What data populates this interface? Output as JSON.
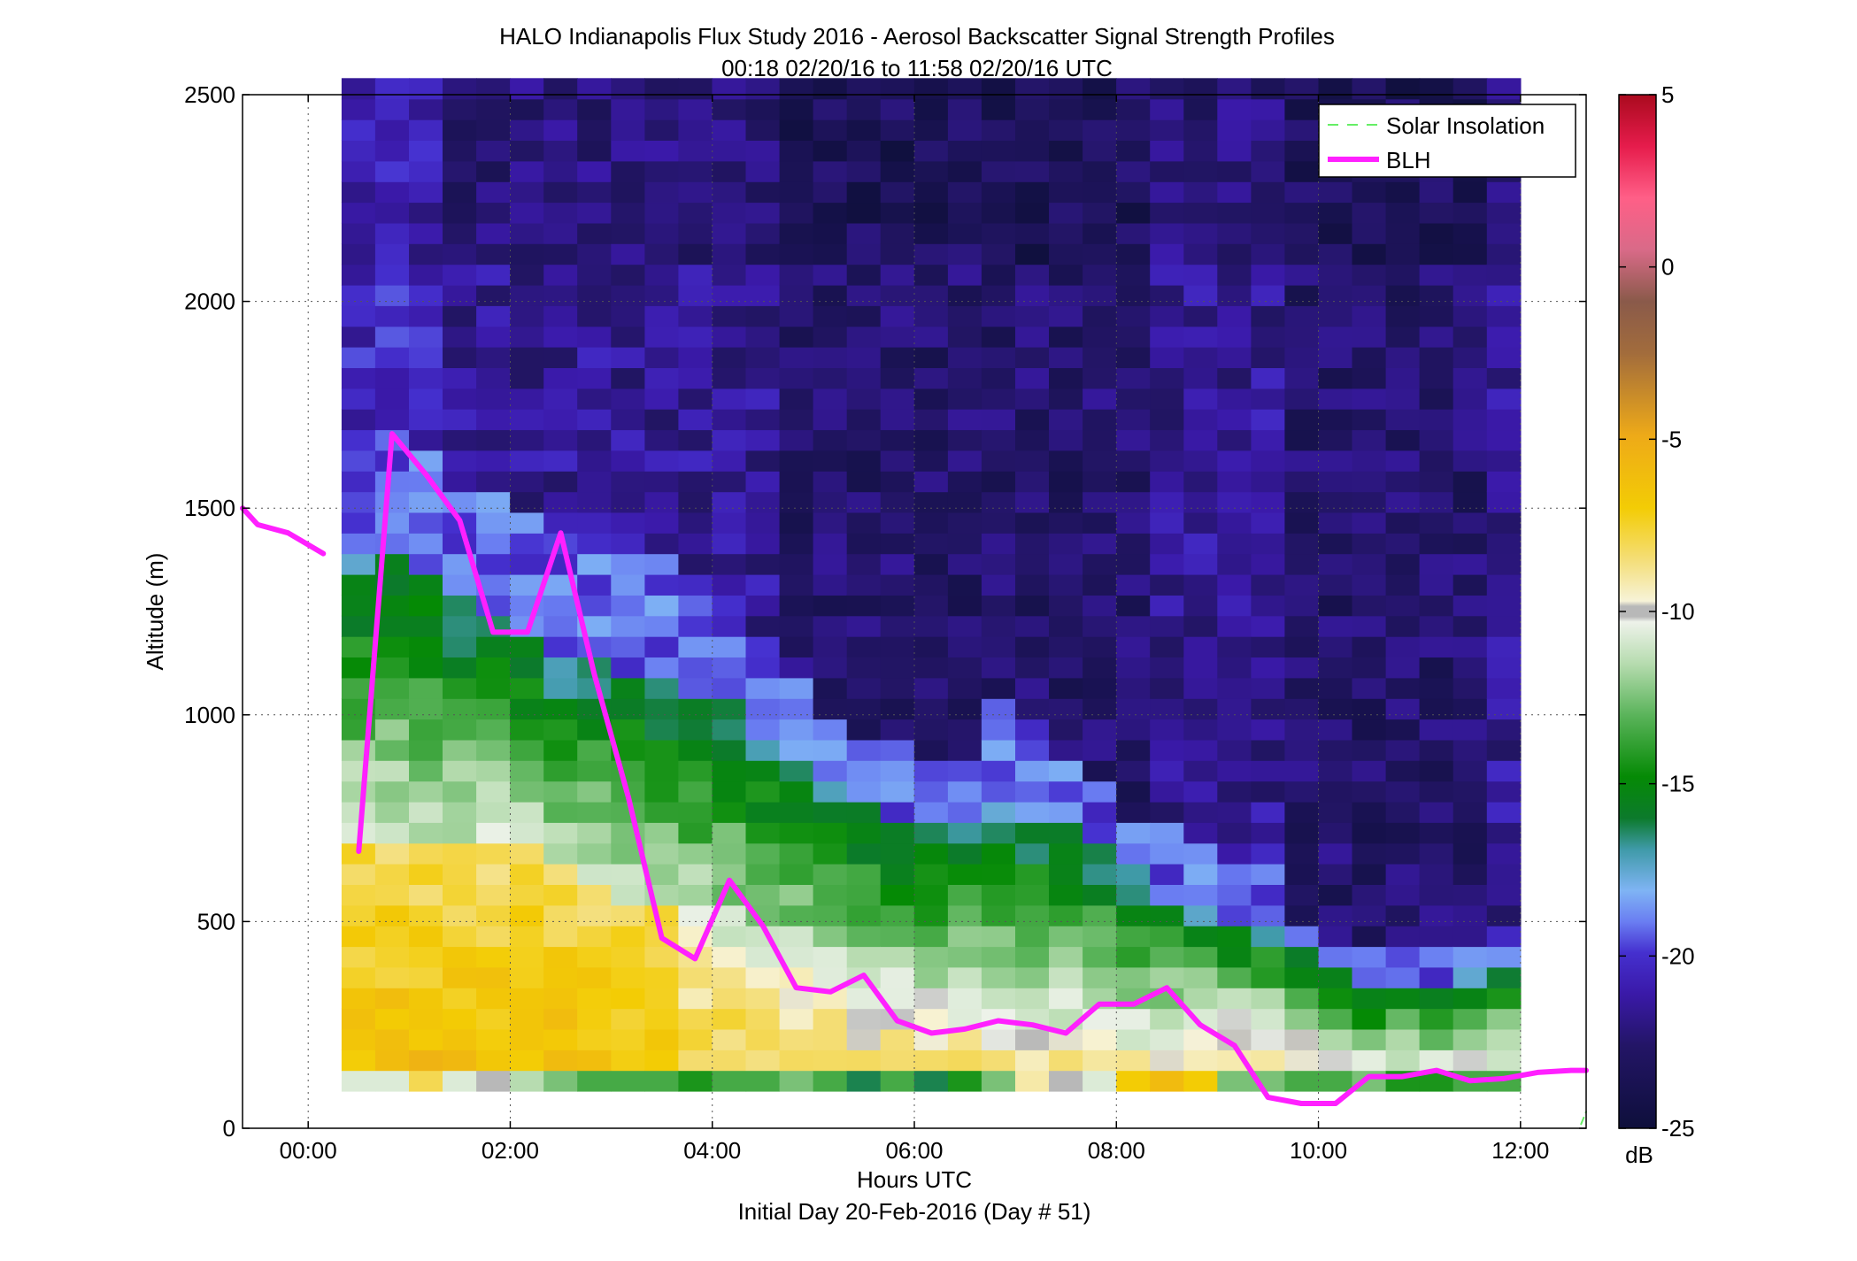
{
  "chart_data": {
    "type": "heatmap",
    "title": "HALO Indianapolis Flux Study 2016 - Aerosol Backscatter Signal Strength Profiles",
    "subtitle": "00:18 02/20/16 to 11:58 02/20/16  UTC",
    "xlabel": "Hours UTC",
    "footer": "Initial Day 20-Feb-2016 (Day # 51)",
    "ylabel": "Altitude (m)",
    "xlim": [
      -0.65,
      12.65
    ],
    "ylim": [
      0,
      2500
    ],
    "x_ticks": [
      0,
      2,
      4,
      6,
      8,
      10,
      12
    ],
    "x_tick_labels": [
      "00:00",
      "02:00",
      "04:00",
      "06:00",
      "08:00",
      "10:00",
      "12:00"
    ],
    "y_ticks": [
      0,
      500,
      1000,
      1500,
      2000,
      2500
    ],
    "y_tick_labels": [
      "0",
      "500",
      "1000",
      "1500",
      "2000",
      "2500"
    ],
    "grid": true,
    "legend": {
      "placement": "top-right",
      "entries": [
        {
          "label": "Solar Insolation",
          "color": "#66ee66",
          "style": "dashed"
        },
        {
          "label": "BLH",
          "color": "#ff20ff",
          "style": "solid"
        }
      ]
    },
    "colorbar": {
      "label": "dB",
      "range": [
        -25,
        5
      ],
      "ticks": [
        5,
        0,
        -5,
        -10,
        -15,
        -20,
        -25
      ],
      "tick_labels": [
        "5",
        "0",
        "-5",
        "-10",
        "-15",
        "-20",
        "-25"
      ]
    },
    "heatmap": {
      "x_start": 0.33,
      "x_end": 12.0,
      "columns": 35,
      "z_bins": [
        {
          "z0": 90,
          "z1": 140,
          "values": [
            -11,
            -11,
            -8,
            -11,
            -10,
            -12,
            -13,
            -14,
            -14,
            -14,
            -15,
            -14,
            -14,
            -13,
            -14,
            -17,
            -14,
            -17,
            -15,
            -13,
            -9,
            -10,
            -11,
            -7,
            -6,
            -7,
            -13,
            -13,
            -14,
            -14,
            -13,
            -15,
            -15,
            -14,
            -14
          ]
        },
        {
          "z0": 140,
          "z1": 460,
          "profile": "surface"
        },
        {
          "z0": 460,
          "z1": 2500,
          "profile": "aloft"
        }
      ],
      "columns_profile": [
        {
          "surface_top": 700,
          "green_top": 1400,
          "light_top": 1680,
          "purple": -21
        },
        {
          "surface_top": 700,
          "green_top": 1380,
          "light_top": 1680,
          "purple": -21
        },
        {
          "surface_top": 690,
          "green_top": 1360,
          "light_top": 1620,
          "purple": -21
        },
        {
          "surface_top": 690,
          "green_top": 1300,
          "light_top": 1560,
          "purple": -22
        },
        {
          "surface_top": 680,
          "green_top": 1240,
          "light_top": 1520,
          "purple": -22
        },
        {
          "surface_top": 670,
          "green_top": 1200,
          "light_top": 1480,
          "purple": -22
        },
        {
          "surface_top": 640,
          "green_top": 1140,
          "light_top": 1460,
          "purple": -22
        },
        {
          "surface_top": 600,
          "green_top": 1120,
          "light_top": 1440,
          "purple": -22
        },
        {
          "surface_top": 560,
          "green_top": 1100,
          "light_top": 1400,
          "purple": -22
        },
        {
          "surface_top": 520,
          "green_top": 1080,
          "light_top": 1380,
          "purple": -22
        },
        {
          "surface_top": 480,
          "green_top": 1060,
          "light_top": 1340,
          "purple": -22
        },
        {
          "surface_top": 440,
          "green_top": 1040,
          "light_top": 1300,
          "purple": -22
        },
        {
          "surface_top": 400,
          "green_top": 960,
          "light_top": 1200,
          "purple": -22
        },
        {
          "surface_top": 380,
          "green_top": 900,
          "light_top": 1100,
          "purple": -23
        },
        {
          "surface_top": 340,
          "green_top": 820,
          "light_top": 980,
          "purple": -23
        },
        {
          "surface_top": 330,
          "green_top": 780,
          "light_top": 960,
          "purple": -23
        },
        {
          "surface_top": 320,
          "green_top": 760,
          "light_top": 930,
          "purple": -23
        },
        {
          "surface_top": 300,
          "green_top": 720,
          "light_top": 900,
          "purple": -23
        },
        {
          "surface_top": 290,
          "green_top": 740,
          "light_top": 900,
          "purple": -23
        },
        {
          "surface_top": 280,
          "green_top": 780,
          "light_top": 1040,
          "purple": -23
        },
        {
          "surface_top": 270,
          "green_top": 760,
          "light_top": 1000,
          "purple": -23
        },
        {
          "surface_top": 260,
          "green_top": 740,
          "light_top": 900,
          "purple": -23
        },
        {
          "surface_top": 250,
          "green_top": 700,
          "light_top": 820,
          "purple": -23
        },
        {
          "surface_top": 240,
          "green_top": 640,
          "light_top": 760,
          "purple": -23
        },
        {
          "surface_top": 260,
          "green_top": 560,
          "light_top": 720,
          "purple": -22
        },
        {
          "surface_top": 280,
          "green_top": 520,
          "light_top": 700,
          "purple": -22
        },
        {
          "surface_top": 280,
          "green_top": 500,
          "light_top": 660,
          "purple": -22
        },
        {
          "surface_top": 260,
          "green_top": 500,
          "light_top": 640,
          "purple": -22
        },
        {
          "surface_top": 220,
          "green_top": 420,
          "light_top": 500,
          "purple": -23
        },
        {
          "surface_top": 190,
          "green_top": 380,
          "light_top": 460,
          "purple": -23
        },
        {
          "surface_top": 160,
          "green_top": 360,
          "light_top": 440,
          "purple": -23
        },
        {
          "surface_top": 160,
          "green_top": 360,
          "light_top": 440,
          "purple": -23
        },
        {
          "surface_top": 170,
          "green_top": 360,
          "light_top": 440,
          "purple": -23
        },
        {
          "surface_top": 180,
          "green_top": 370,
          "light_top": 450,
          "purple": -23
        },
        {
          "surface_top": 180,
          "green_top": 380,
          "light_top": 460,
          "purple": -22
        }
      ]
    },
    "series": [
      {
        "name": "BLH",
        "color": "#ff20ff",
        "segments": [
          {
            "x": [
              -0.65,
              -0.5,
              -0.2,
              0.15
            ],
            "y": [
              1500,
              1460,
              1440,
              1390
            ]
          },
          {
            "x": [
              0.5,
              0.83,
              1.17,
              1.5,
              1.83,
              2.17,
              2.5,
              2.83,
              3.17,
              3.5,
              3.83,
              4.17,
              4.5,
              4.83,
              5.17,
              5.5,
              5.83,
              6.17,
              6.5,
              6.83,
              7.17,
              7.5,
              7.83,
              8.17,
              8.5,
              8.83,
              9.17,
              9.5,
              9.83,
              10.17,
              10.5,
              10.83,
              11.17,
              11.5,
              11.83,
              12.17,
              12.5,
              12.65
            ],
            "y": [
              670,
              1680,
              1580,
              1470,
              1200,
              1200,
              1440,
              1100,
              800,
              460,
              410,
              600,
              490,
              340,
              330,
              370,
              260,
              230,
              240,
              260,
              250,
              230,
              300,
              300,
              340,
              250,
              200,
              75,
              60,
              60,
              125,
              125,
              140,
              115,
              120,
              135,
              140,
              140
            ]
          }
        ]
      },
      {
        "name": "Solar Insolation",
        "color": "#66ee66",
        "segments": [
          {
            "x": [
              12.6,
              12.65
            ],
            "y": [
              10,
              40
            ]
          }
        ]
      }
    ]
  }
}
